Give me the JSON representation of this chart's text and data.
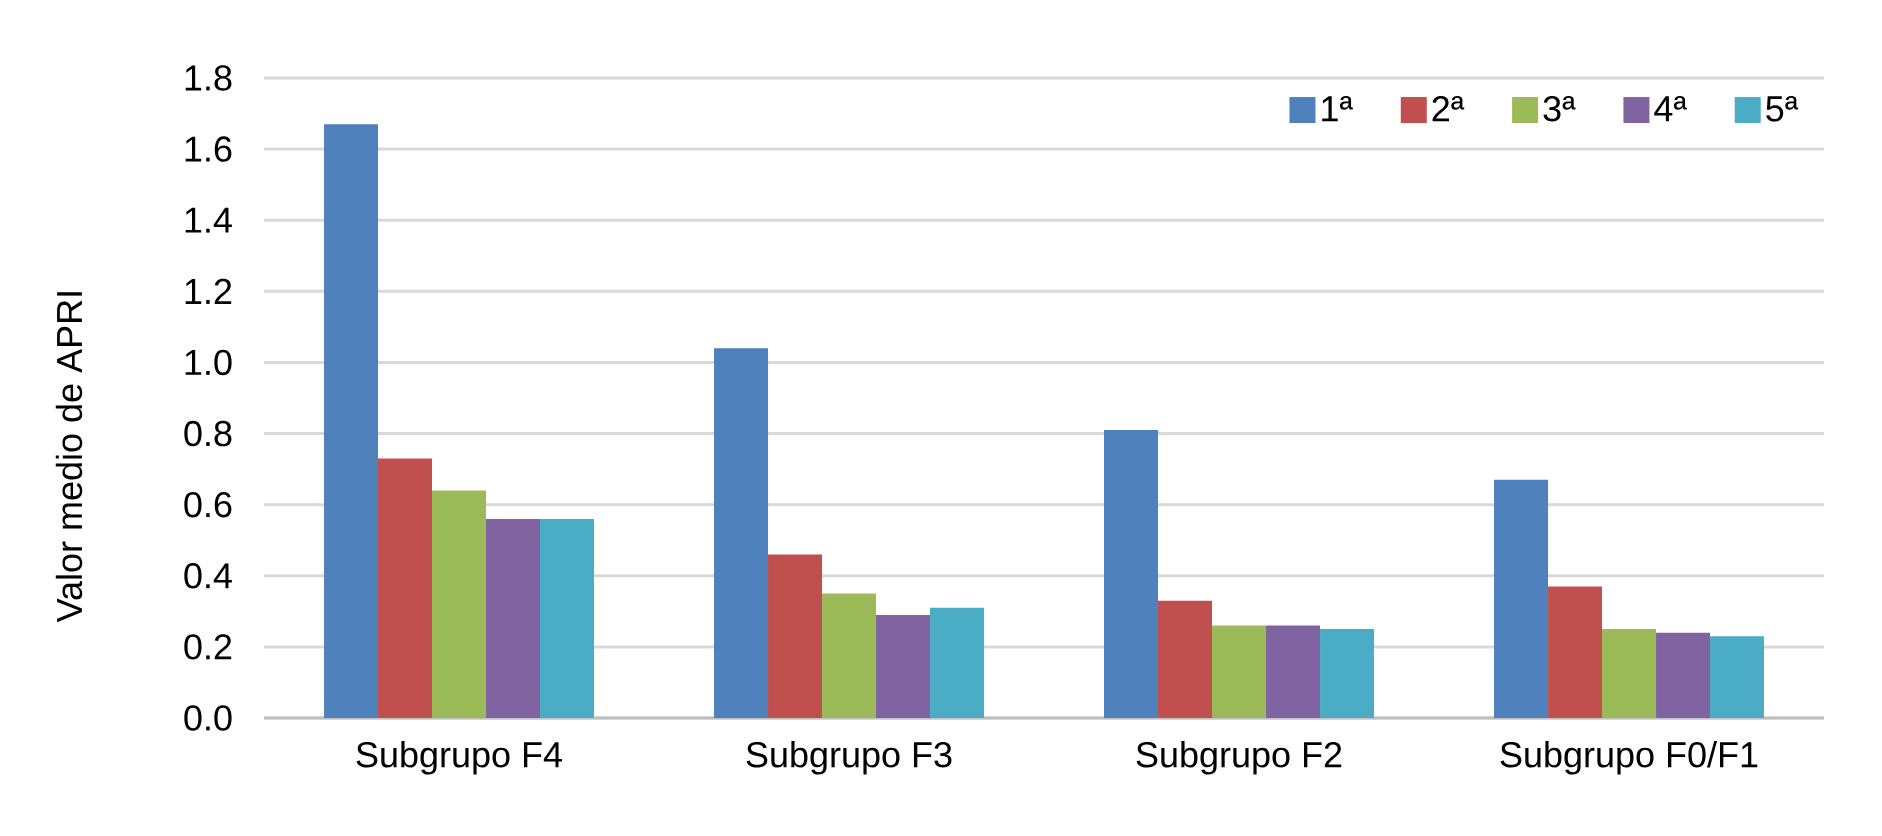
{
  "chart_data": {
    "type": "bar",
    "ylabel": "Valor medio de APRI",
    "categories": [
      "Subgrupo F4",
      "Subgrupo F3",
      "Subgrupo F2",
      "Subgrupo F0/F1"
    ],
    "series": [
      {
        "name": "1ª",
        "color": "#4f81bd",
        "values": [
          1.67,
          1.04,
          0.81,
          0.67
        ]
      },
      {
        "name": "2ª",
        "color": "#c0504d",
        "values": [
          0.73,
          0.46,
          0.33,
          0.37
        ]
      },
      {
        "name": "3ª",
        "color": "#9bbb59",
        "values": [
          0.64,
          0.35,
          0.26,
          0.25
        ]
      },
      {
        "name": "4ª",
        "color": "#8064a2",
        "values": [
          0.56,
          0.29,
          0.26,
          0.24
        ]
      },
      {
        "name": "5ª",
        "color": "#4bacc6",
        "values": [
          0.56,
          0.31,
          0.25,
          0.23
        ]
      }
    ],
    "ylim": [
      0,
      1.8
    ],
    "yticks": [
      {
        "value": 0,
        "label": "0.0"
      },
      0.2,
      0.4,
      0.6,
      0.8,
      {
        "value": 1,
        "label": "1.0"
      },
      1.2,
      1.4,
      1.6,
      1.8
    ],
    "grid": "y",
    "legend": "top right"
  }
}
